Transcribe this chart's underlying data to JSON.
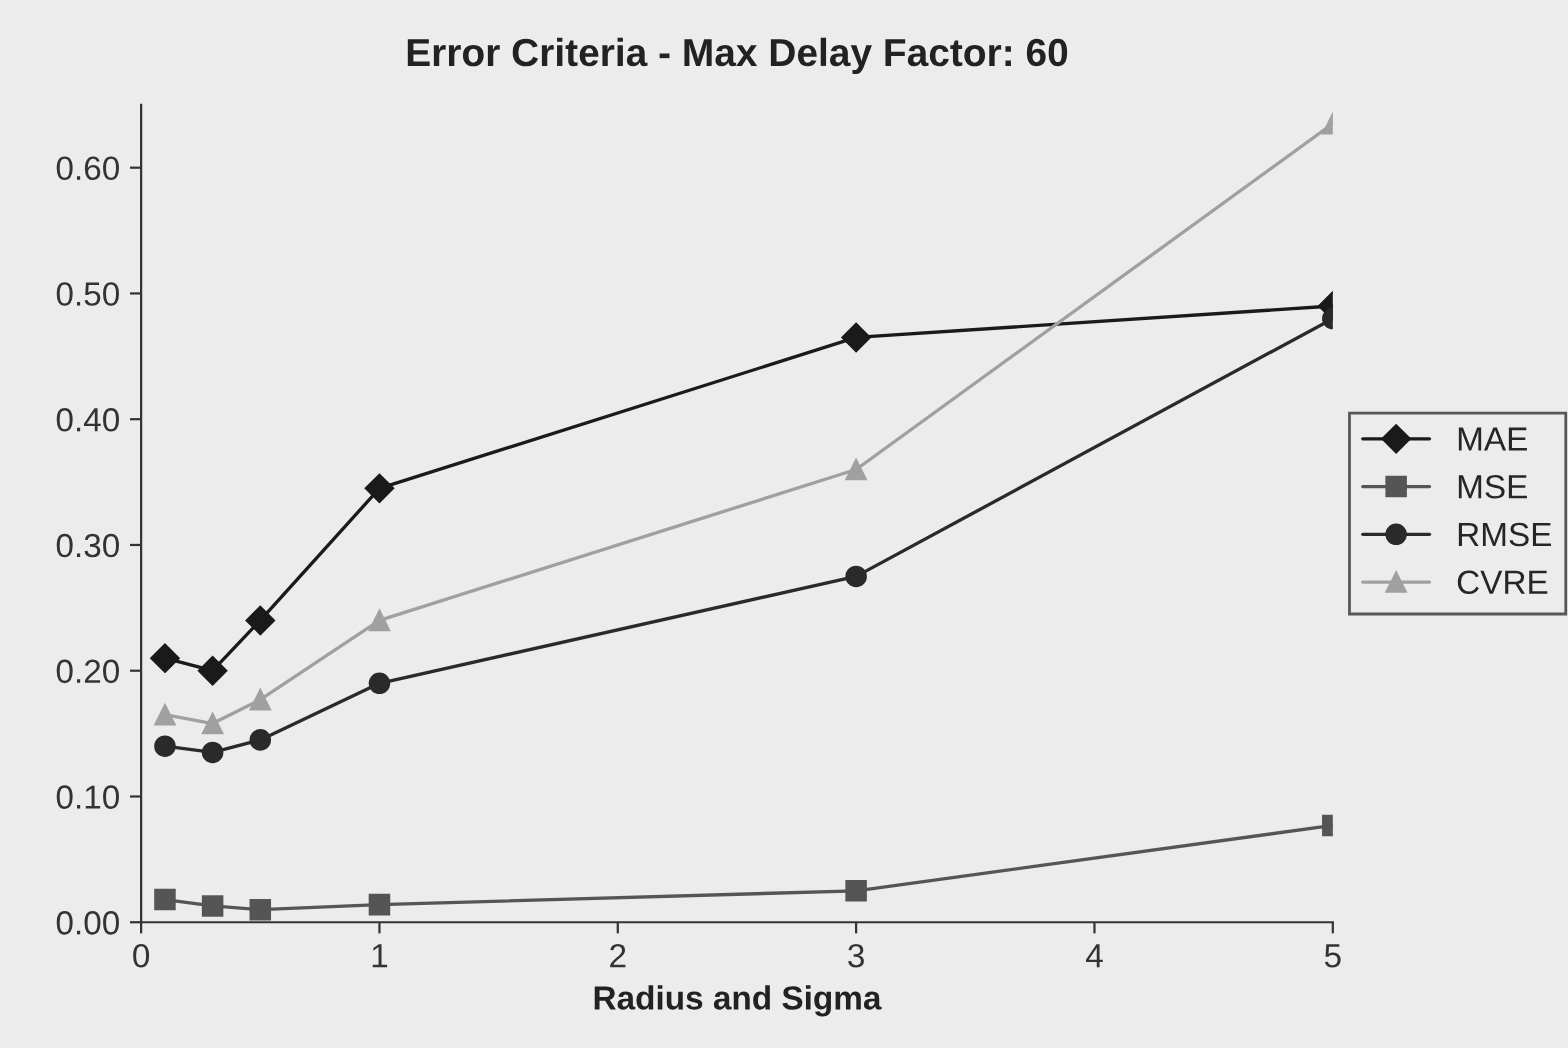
{
  "chart_data": {
    "type": "line",
    "title": "Error Criteria - Max Delay Factor: 60",
    "xlabel": "Radius and Sigma",
    "x": [
      0.1,
      0.3,
      0.5,
      1,
      3,
      5
    ],
    "series": [
      {
        "name": "MAE",
        "color": "#1a1a1a",
        "marker": "diamond",
        "values": [
          0.21,
          0.2,
          0.24,
          0.345,
          0.465,
          0.49
        ]
      },
      {
        "name": "MSE",
        "color": "#555555",
        "marker": "square",
        "values": [
          0.018,
          0.013,
          0.01,
          0.014,
          0.025,
          0.077
        ]
      },
      {
        "name": "RMSE",
        "color": "#2a2a2a",
        "marker": "circle",
        "values": [
          0.14,
          0.135,
          0.145,
          0.19,
          0.275,
          0.48
        ]
      },
      {
        "name": "CVRE",
        "color": "#a0a0a0",
        "marker": "triangle",
        "values": [
          0.165,
          0.158,
          0.177,
          0.24,
          0.36,
          0.635
        ]
      }
    ],
    "xlim": [
      0,
      5
    ],
    "xticks": [
      0,
      1,
      2,
      3,
      4,
      5
    ],
    "ylim": [
      0,
      0.65
    ],
    "yticks": [
      {
        "value": 0,
        "label": "0.00"
      },
      {
        "value": 0.1,
        "label": "0.10"
      },
      {
        "value": 0.2,
        "label": "0.20"
      },
      {
        "value": 0.3,
        "label": "0.30"
      },
      {
        "value": 0.4,
        "label": "0.40"
      },
      {
        "value": 0.5,
        "label": "0.50"
      },
      {
        "value": 0.6,
        "label": "0.60"
      }
    ],
    "grid": false,
    "legend": "right"
  }
}
